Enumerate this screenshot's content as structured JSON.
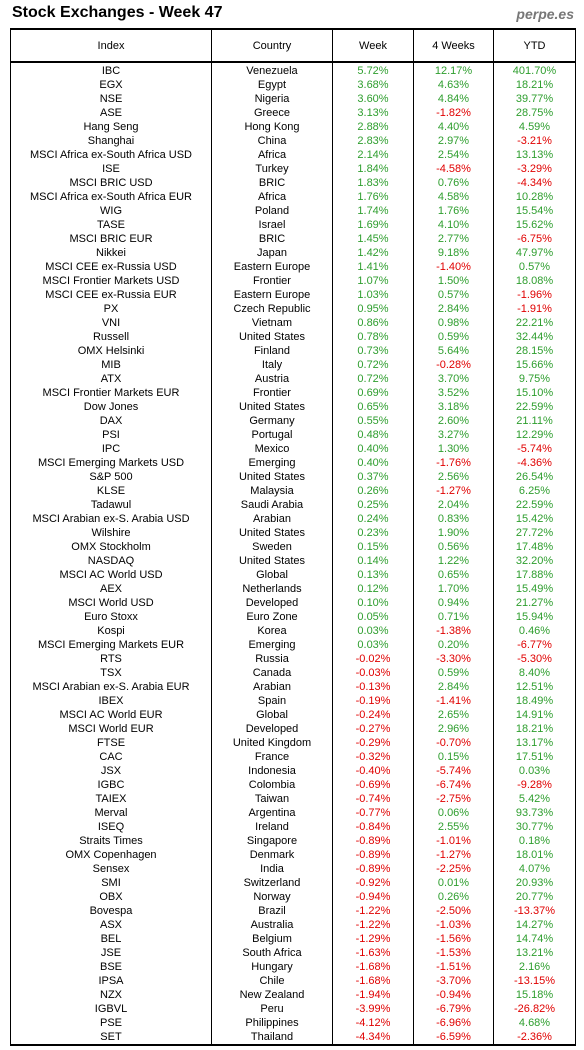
{
  "title": "Stock Exchanges - Week 47",
  "brand": "perpe.es",
  "colors": {
    "positive": "#2e9e2e",
    "negative": "#e00000"
  },
  "headers": [
    "Index",
    "Country",
    "Week",
    "4 Weeks",
    "YTD"
  ],
  "rows": [
    [
      "IBC",
      "Venezuela",
      "5.72%",
      "12.17%",
      "401.70%"
    ],
    [
      "EGX",
      "Egypt",
      "3.68%",
      "4.63%",
      "18.21%"
    ],
    [
      "NSE",
      "Nigeria",
      "3.60%",
      "4.84%",
      "39.77%"
    ],
    [
      "ASE",
      "Greece",
      "3.13%",
      "-1.82%",
      "28.75%"
    ],
    [
      "Hang Seng",
      "Hong Kong",
      "2.88%",
      "4.40%",
      "4.59%"
    ],
    [
      "Shanghai",
      "China",
      "2.83%",
      "2.97%",
      "-3.21%"
    ],
    [
      "MSCI Africa ex-South Africa USD",
      "Africa",
      "2.14%",
      "2.54%",
      "13.13%"
    ],
    [
      "ISE",
      "Turkey",
      "1.84%",
      "-4.58%",
      "-3.29%"
    ],
    [
      "MSCI BRIC USD",
      "BRIC",
      "1.83%",
      "0.76%",
      "-4.34%"
    ],
    [
      "MSCI Africa ex-South Africa EUR",
      "Africa",
      "1.76%",
      "4.58%",
      "10.28%"
    ],
    [
      "WIG",
      "Poland",
      "1.74%",
      "1.76%",
      "15.54%"
    ],
    [
      "TASE",
      "Israel",
      "1.69%",
      "4.10%",
      "15.62%"
    ],
    [
      "MSCI BRIC EUR",
      "BRIC",
      "1.45%",
      "2.77%",
      "-6.75%"
    ],
    [
      "Nikkei",
      "Japan",
      "1.42%",
      "9.18%",
      "47.97%"
    ],
    [
      "MSCI CEE ex-Russia USD",
      "Eastern Europe",
      "1.41%",
      "-1.40%",
      "0.57%"
    ],
    [
      "MSCI Frontier Markets USD",
      "Frontier",
      "1.07%",
      "1.50%",
      "18.08%"
    ],
    [
      "MSCI CEE ex-Russia EUR",
      "Eastern Europe",
      "1.03%",
      "0.57%",
      "-1.96%"
    ],
    [
      "PX",
      "Czech Republic",
      "0.95%",
      "2.84%",
      "-1.91%"
    ],
    [
      "VNI",
      "Vietnam",
      "0.86%",
      "0.98%",
      "22.21%"
    ],
    [
      "Russell",
      "United States",
      "0.78%",
      "0.59%",
      "32.44%"
    ],
    [
      "OMX Helsinki",
      "Finland",
      "0.73%",
      "5.64%",
      "28.15%"
    ],
    [
      "MIB",
      "Italy",
      "0.72%",
      "-0.28%",
      "15.66%"
    ],
    [
      "ATX",
      "Austria",
      "0.72%",
      "3.70%",
      "9.75%"
    ],
    [
      "MSCI Frontier Markets EUR",
      "Frontier",
      "0.69%",
      "3.52%",
      "15.10%"
    ],
    [
      "Dow Jones",
      "United States",
      "0.65%",
      "3.18%",
      "22.59%"
    ],
    [
      "DAX",
      "Germany",
      "0.55%",
      "2.60%",
      "21.11%"
    ],
    [
      "PSI",
      "Portugal",
      "0.48%",
      "3.27%",
      "12.29%"
    ],
    [
      "IPC",
      "Mexico",
      "0.40%",
      "1.30%",
      "-5.74%"
    ],
    [
      "MSCI Emerging Markets USD",
      "Emerging",
      "0.40%",
      "-1.76%",
      "-4.36%"
    ],
    [
      "S&P 500",
      "United States",
      "0.37%",
      "2.56%",
      "26.54%"
    ],
    [
      "KLSE",
      "Malaysia",
      "0.26%",
      "-1.27%",
      "6.25%"
    ],
    [
      "Tadawul",
      "Saudi Arabia",
      "0.25%",
      "2.04%",
      "22.59%"
    ],
    [
      "MSCI Arabian ex-S. Arabia USD",
      "Arabian",
      "0.24%",
      "0.83%",
      "15.42%"
    ],
    [
      "Wilshire",
      "United States",
      "0.23%",
      "1.90%",
      "27.72%"
    ],
    [
      "OMX Stockholm",
      "Sweden",
      "0.15%",
      "0.56%",
      "17.48%"
    ],
    [
      "NASDAQ",
      "United States",
      "0.14%",
      "1.22%",
      "32.20%"
    ],
    [
      "MSCI AC World USD",
      "Global",
      "0.13%",
      "0.65%",
      "17.88%"
    ],
    [
      "AEX",
      "Netherlands",
      "0.12%",
      "1.70%",
      "15.49%"
    ],
    [
      "MSCI World USD",
      "Developed",
      "0.10%",
      "0.94%",
      "21.27%"
    ],
    [
      "Euro Stoxx",
      "Euro Zone",
      "0.05%",
      "0.71%",
      "15.94%"
    ],
    [
      "Kospi",
      "Korea",
      "0.03%",
      "-1.38%",
      "0.46%"
    ],
    [
      "MSCI Emerging Markets EUR",
      "Emerging",
      "0.03%",
      "0.20%",
      "-6.77%"
    ],
    [
      "RTS",
      "Russia",
      "-0.02%",
      "-3.30%",
      "-5.30%"
    ],
    [
      "TSX",
      "Canada",
      "-0.03%",
      "0.59%",
      "8.40%"
    ],
    [
      "MSCI Arabian ex-S. Arabia EUR",
      "Arabian",
      "-0.13%",
      "2.84%",
      "12.51%"
    ],
    [
      "IBEX",
      "Spain",
      "-0.19%",
      "-1.41%",
      "18.49%"
    ],
    [
      "MSCI AC World EUR",
      "Global",
      "-0.24%",
      "2.65%",
      "14.91%"
    ],
    [
      "MSCI World EUR",
      "Developed",
      "-0.27%",
      "2.96%",
      "18.21%"
    ],
    [
      "FTSE",
      "United Kingdom",
      "-0.29%",
      "-0.70%",
      "13.17%"
    ],
    [
      "CAC",
      "France",
      "-0.32%",
      "0.15%",
      "17.51%"
    ],
    [
      "JSX",
      "Indonesia",
      "-0.40%",
      "-5.74%",
      "0.03%"
    ],
    [
      "IGBC",
      "Colombia",
      "-0.69%",
      "-6.74%",
      "-9.28%"
    ],
    [
      "TAIEX",
      "Taiwan",
      "-0.74%",
      "-2.75%",
      "5.42%"
    ],
    [
      "Merval",
      "Argentina",
      "-0.77%",
      "0.06%",
      "93.73%"
    ],
    [
      "ISEQ",
      "Ireland",
      "-0.84%",
      "2.55%",
      "30.77%"
    ],
    [
      "Straits Times",
      "Singapore",
      "-0.89%",
      "-1.01%",
      "0.18%"
    ],
    [
      "OMX Copenhagen",
      "Denmark",
      "-0.89%",
      "-1.27%",
      "18.01%"
    ],
    [
      "Sensex",
      "India",
      "-0.89%",
      "-2.25%",
      "4.07%"
    ],
    [
      "SMI",
      "Switzerland",
      "-0.92%",
      "0.01%",
      "20.93%"
    ],
    [
      "OBX",
      "Norway",
      "-0.94%",
      "0.26%",
      "20.77%"
    ],
    [
      "Bovespa",
      "Brazil",
      "-1.22%",
      "-2.50%",
      "-13.37%"
    ],
    [
      "ASX",
      "Australia",
      "-1.22%",
      "-1.03%",
      "14.27%"
    ],
    [
      "BEL",
      "Belgium",
      "-1.29%",
      "-1.56%",
      "14.74%"
    ],
    [
      "JSE",
      "South Africa",
      "-1.63%",
      "-1.53%",
      "13.21%"
    ],
    [
      "BSE",
      "Hungary",
      "-1.68%",
      "-1.51%",
      "2.16%"
    ],
    [
      "IPSA",
      "Chile",
      "-1.68%",
      "-3.70%",
      "-13.15%"
    ],
    [
      "NZX",
      "New Zealand",
      "-1.94%",
      "-0.94%",
      "15.18%"
    ],
    [
      "IGBVL",
      "Peru",
      "-3.99%",
      "-6.79%",
      "-26.82%"
    ],
    [
      "PSE",
      "Philippines",
      "-4.12%",
      "-6.96%",
      "4.68%"
    ],
    [
      "SET",
      "Thailand",
      "-4.34%",
      "-6.59%",
      "-2.36%"
    ]
  ]
}
